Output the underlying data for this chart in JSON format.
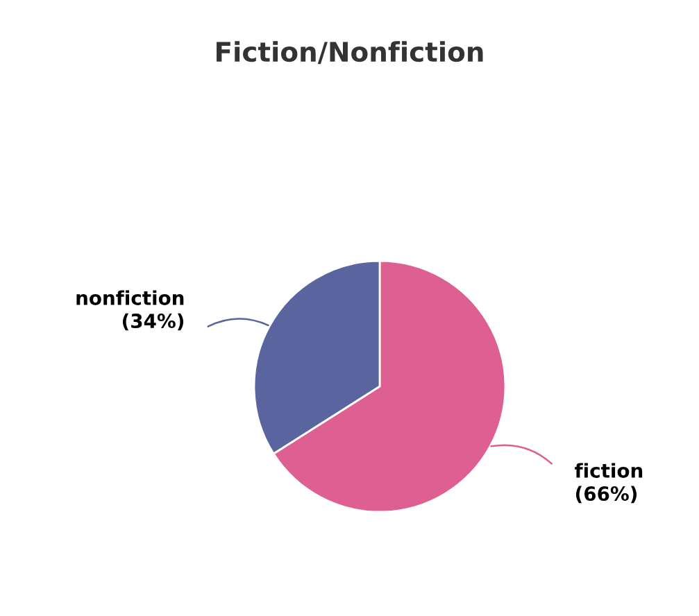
{
  "chart_data": {
    "type": "pie",
    "title": "Fiction/Nonfiction",
    "categories": [
      "fiction",
      "nonfiction"
    ],
    "values": [
      66,
      34
    ],
    "value_labels": [
      "(66%)",
      "(34%)"
    ],
    "colors": [
      "#de5f92",
      "#5a649e"
    ]
  }
}
